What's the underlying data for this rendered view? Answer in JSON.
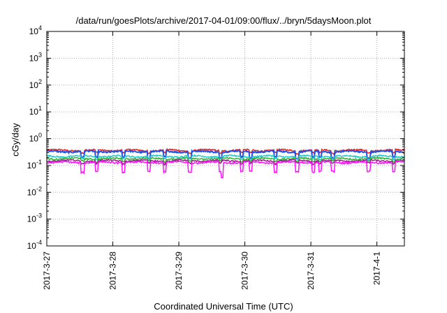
{
  "chart_data": {
    "type": "line",
    "title": "/data/run/goesPlots/archive/2017-04-01/09:00/flux/../bryn/5daysMoon.plot",
    "xlabel": "Coordinated Universal Time (UTC)",
    "ylabel": "cGy/day",
    "y_scale": "log",
    "ylim": [
      0.0001,
      10000
    ],
    "xlim": [
      "2017-03-27",
      "2017-04-01 10:00"
    ],
    "grid": true,
    "legend": "none",
    "x_ticks": [
      "2017-3-27",
      "2017-3-28",
      "2017-3-29",
      "2017-3-30",
      "2017-3-31",
      "2017-4-1"
    ],
    "y_ticks": [
      {
        "base": "10",
        "exp": "-4",
        "value": 0.0001
      },
      {
        "base": "10",
        "exp": "-3",
        "value": 0.001
      },
      {
        "base": "10",
        "exp": "-2",
        "value": 0.01
      },
      {
        "base": "10",
        "exp": "-1",
        "value": 0.1
      },
      {
        "base": "10",
        "exp": "0",
        "value": 1
      },
      {
        "base": "10",
        "exp": "1",
        "value": 10
      },
      {
        "base": "10",
        "exp": "2",
        "value": 100
      },
      {
        "base": "10",
        "exp": "3",
        "value": 1000
      },
      {
        "base": "10",
        "exp": "4",
        "value": 10000
      }
    ],
    "series": [
      {
        "color": "#e8201c",
        "approx_value": 0.37
      },
      {
        "color": "#2050e8",
        "approx_value": 0.33
      },
      {
        "color": "#20c8c8",
        "approx_value": 0.22
      },
      {
        "color": "#30b030",
        "approx_value": 0.18
      },
      {
        "color": "#a01890",
        "approx_value": 0.15
      },
      {
        "color": "#ff10ff",
        "approx_value": 0.13
      }
    ]
  }
}
